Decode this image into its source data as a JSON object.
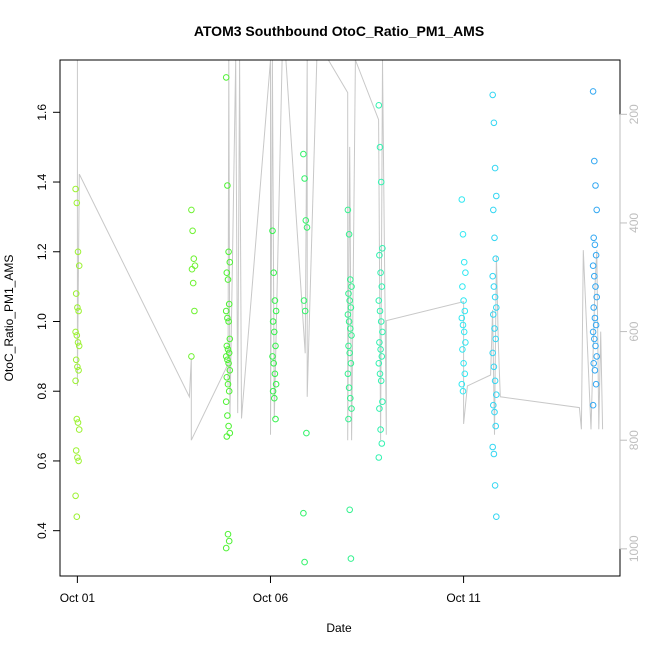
{
  "chart_data": {
    "type": "scatter",
    "title": "ATOM3 Southbound OtoC_Ratio_PM1_AMS",
    "xlabel": "Date",
    "ylabel": "OtoC_Ratio_PM1_AMS",
    "x_ticks": [
      {
        "label": "Oct 01",
        "day": 1
      },
      {
        "label": "Oct 06",
        "day": 6
      },
      {
        "label": "Oct 11",
        "day": 11
      }
    ],
    "xlim_days": [
      0.55,
      15.05
    ],
    "ylim": [
      0.27,
      1.75
    ],
    "y_ticks": [
      0.4,
      0.6,
      0.8,
      1.0,
      1.2,
      1.4,
      1.6
    ],
    "y_tick_labels": [
      "0.4",
      "0.6",
      "0.8",
      "1.0",
      "1.2",
      "1.4",
      "1.6"
    ],
    "right_axis": {
      "lim": [
        1050,
        100
      ],
      "ticks": [
        200,
        400,
        600,
        800,
        1000
      ],
      "tick_labels": [
        "200",
        "400",
        "600",
        "800",
        "1000"
      ],
      "color": "#bebebe"
    },
    "grid": false,
    "legend": "none",
    "series": [
      {
        "day": 1.0,
        "color": "#9cf231",
        "values": [
          1.38,
          1.34,
          1.2,
          1.16,
          1.08,
          1.04,
          1.03,
          0.97,
          0.96,
          0.94,
          0.93,
          0.89,
          0.87,
          0.86,
          0.83,
          0.72,
          0.71,
          0.69,
          0.63,
          0.61,
          0.6,
          0.5,
          0.44
        ]
      },
      {
        "day": 4.0,
        "color": "#6ef231",
        "values": [
          1.32,
          1.26,
          1.18,
          1.16,
          1.15,
          1.11,
          1.03,
          0.9
        ]
      },
      {
        "day": 4.9,
        "color": "#4ef233",
        "values": [
          1.7,
          1.39,
          1.2,
          1.17,
          1.14,
          1.12,
          1.05,
          1.03,
          1.01,
          1.0,
          0.95,
          0.93,
          0.92,
          0.91,
          0.9,
          0.89,
          0.88,
          0.86,
          0.84,
          0.82,
          0.8,
          0.77,
          0.73,
          0.7,
          0.68,
          0.67,
          0.39,
          0.37,
          0.35
        ]
      },
      {
        "day": 6.1,
        "color": "#33f24a",
        "values": [
          1.26,
          1.14,
          1.06,
          1.03,
          1.0,
          0.97,
          0.93,
          0.9,
          0.88,
          0.85,
          0.82,
          0.8,
          0.78,
          0.72
        ]
      },
      {
        "day": 6.9,
        "color": "#33f26a",
        "values": [
          1.48,
          1.41,
          1.29,
          1.27,
          1.06,
          1.03,
          0.68,
          0.45,
          0.31
        ]
      },
      {
        "day": 8.05,
        "color": "#33f28f",
        "values": [
          1.32,
          1.25,
          1.12,
          1.1,
          1.08,
          1.06,
          1.04,
          1.02,
          1.0,
          0.98,
          0.96,
          0.93,
          0.91,
          0.88,
          0.85,
          0.81,
          0.78,
          0.75,
          0.72,
          0.46,
          0.32
        ]
      },
      {
        "day": 8.85,
        "color": "#33f2b0",
        "values": [
          1.62,
          1.5,
          1.4,
          1.21,
          1.19,
          1.14,
          1.1,
          1.06,
          1.03,
          1.0,
          0.97,
          0.94,
          0.92,
          0.9,
          0.88,
          0.85,
          0.83,
          0.77,
          0.75,
          0.69,
          0.65,
          0.61
        ]
      },
      {
        "day": 11.0,
        "color": "#33e8f2",
        "values": [
          1.35,
          1.25,
          1.17,
          1.14,
          1.1,
          1.06,
          1.03,
          1.01,
          0.99,
          0.97,
          0.94,
          0.92,
          0.88,
          0.85,
          0.82,
          0.8
        ]
      },
      {
        "day": 11.8,
        "color": "#33d6f2",
        "values": [
          1.65,
          1.57,
          1.44,
          1.36,
          1.32,
          1.24,
          1.18,
          1.13,
          1.1,
          1.07,
          1.04,
          1.02,
          0.98,
          0.95,
          0.91,
          0.87,
          0.83,
          0.79,
          0.76,
          0.74,
          0.7,
          0.64,
          0.62,
          0.53,
          0.44
        ]
      },
      {
        "day": 14.4,
        "color": "#33a8f2",
        "values": [
          1.66,
          1.46,
          1.39,
          1.32,
          1.24,
          1.22,
          1.19,
          1.16,
          1.13,
          1.1,
          1.07,
          1.04,
          1.01,
          0.99,
          0.97,
          0.95,
          0.93,
          0.9,
          0.88,
          0.86,
          0.82,
          0.76
        ]
      }
    ],
    "altitude_trace": {
      "color": "#c8c8c8",
      "points": [
        [
          1.0,
          100
        ],
        [
          1.0,
          700
        ],
        [
          1.05,
          310
        ],
        [
          3.9,
          720
        ],
        [
          3.95,
          650
        ],
        [
          3.95,
          800
        ],
        [
          4.9,
          660
        ],
        [
          4.9,
          700
        ],
        [
          4.92,
          100
        ],
        [
          4.95,
          760
        ],
        [
          5.1,
          100
        ],
        [
          5.15,
          750
        ],
        [
          5.2,
          100
        ],
        [
          5.25,
          760
        ],
        [
          6.0,
          100
        ],
        [
          6.0,
          790
        ],
        [
          6.05,
          100
        ],
        [
          6.1,
          760
        ],
        [
          6.3,
          100
        ],
        [
          6.4,
          100
        ],
        [
          6.9,
          640
        ],
        [
          6.95,
          100
        ],
        [
          6.95,
          720
        ],
        [
          7.2,
          100
        ],
        [
          7.5,
          100
        ],
        [
          8.0,
          160
        ],
        [
          8.0,
          800
        ],
        [
          8.05,
          260
        ],
        [
          8.1,
          800
        ],
        [
          8.2,
          100
        ],
        [
          8.8,
          210
        ],
        [
          8.85,
          800
        ],
        [
          8.9,
          100
        ],
        [
          9.0,
          790
        ],
        [
          9.0,
          580
        ],
        [
          11.0,
          545
        ],
        [
          11.0,
          770
        ],
        [
          11.1,
          700
        ],
        [
          11.7,
          680
        ],
        [
          11.75,
          560
        ],
        [
          11.8,
          790
        ],
        [
          11.85,
          460
        ],
        [
          11.9,
          620
        ],
        [
          11.95,
          720
        ],
        [
          14.0,
          740
        ],
        [
          14.05,
          780
        ],
        [
          14.1,
          450
        ],
        [
          14.3,
          780
        ],
        [
          14.4,
          520
        ],
        [
          14.45,
          450
        ],
        [
          14.5,
          780
        ],
        [
          14.55,
          600
        ],
        [
          14.6,
          780
        ]
      ]
    }
  }
}
